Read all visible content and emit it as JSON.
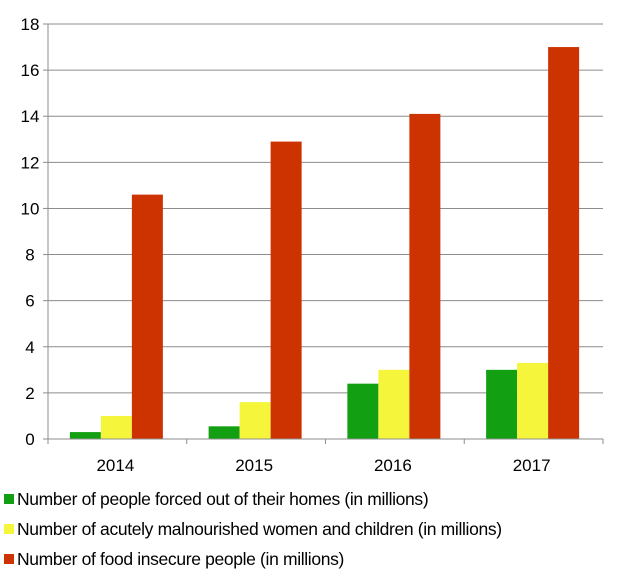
{
  "chart_data": {
    "type": "bar",
    "categories": [
      "2014",
      "2015",
      "2016",
      "2017"
    ],
    "series": [
      {
        "name": "Number of people forced out of their homes (in millions)",
        "color": "#12a012",
        "values": [
          0.3,
          0.55,
          2.4,
          3.0
        ]
      },
      {
        "name": "Number of acutely malnourished women and children (in millions)",
        "color": "#f5f53b",
        "values": [
          1.0,
          1.6,
          3.0,
          3.3
        ]
      },
      {
        "name": "Number of food insecure people (in millions)",
        "color": "#cc3300",
        "values": [
          10.6,
          12.9,
          14.1,
          17.0
        ]
      }
    ],
    "ylim": [
      0,
      18
    ],
    "yticks": [
      0,
      2,
      4,
      6,
      8,
      10,
      12,
      14,
      16,
      18
    ],
    "grid": true,
    "legend_position": "bottom",
    "title": "",
    "xlabel": "",
    "ylabel": ""
  }
}
